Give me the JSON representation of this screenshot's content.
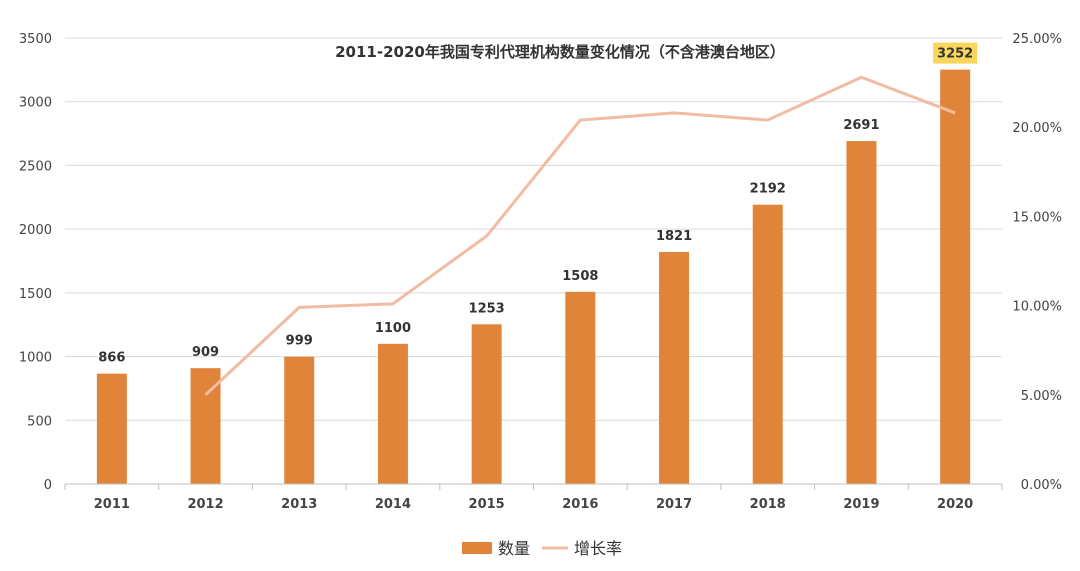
{
  "chart_data": {
    "type": "bar",
    "title": "2011-2020年我国专利代理机构数量变化情况（不含港澳台地区）",
    "categories": [
      "2011",
      "2012",
      "2013",
      "2014",
      "2015",
      "2016",
      "2017",
      "2018",
      "2019",
      "2020"
    ],
    "series": [
      {
        "name": "数量",
        "type": "bar",
        "axis": "left",
        "color": "#E0843A",
        "values": [
          866,
          909,
          999,
          1100,
          1253,
          1508,
          1821,
          2192,
          2691,
          3252
        ],
        "labels": [
          "866",
          "909",
          "999",
          "1100",
          "1253",
          "1508",
          "1821",
          "2192",
          "2691",
          "3252"
        ]
      },
      {
        "name": "增长率",
        "type": "line",
        "axis": "right",
        "color": "#F2BBA4",
        "values": [
          null,
          5.0,
          9.9,
          10.1,
          13.9,
          20.4,
          20.8,
          20.4,
          22.8,
          20.8
        ]
      }
    ],
    "y_left": {
      "min": 0,
      "max": 3500,
      "ticks": [
        "0",
        "500",
        "1000",
        "1500",
        "2000",
        "2500",
        "3000",
        "3500"
      ]
    },
    "y_right": {
      "min": 0,
      "max": 25,
      "ticks": [
        "0.00%",
        "5.00%",
        "10.00%",
        "15.00%",
        "20.00%",
        "25.00%"
      ]
    },
    "highlight_label_index": 9,
    "highlight_color": "#F9D65C",
    "legend": {
      "position": "bottom",
      "items": [
        "数量",
        "增长率"
      ]
    },
    "grid": true
  }
}
